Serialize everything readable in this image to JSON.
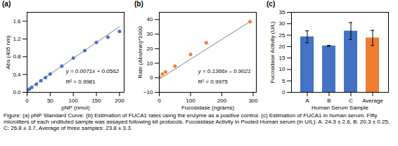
{
  "chart_data": [
    {
      "type": "scatter",
      "title": "(a)",
      "xlabel": "pNP (nmol)",
      "ylabel": "Abs (405 nm)",
      "series": [
        {
          "type": "scatter",
          "color": "#4472C4",
          "x": [
            0,
            5,
            10,
            20,
            30,
            40,
            50,
            75,
            100,
            125,
            150,
            175,
            200
          ],
          "values": [
            0.04,
            0.07,
            0.11,
            0.18,
            0.26,
            0.33,
            0.41,
            0.59,
            0.77,
            0.94,
            1.12,
            1.24,
            1.37
          ]
        },
        {
          "type": "line",
          "color": "#808080",
          "x": [
            0,
            200
          ],
          "values": [
            0.0562,
            1.4762
          ]
        }
      ],
      "annotations": [
        "y = 0.0071x + 0.0562",
        "R² = 0.9981"
      ],
      "xlim": [
        0,
        210
      ],
      "ylim": [
        0,
        1.8
      ],
      "xticks": [
        0,
        50,
        100,
        150,
        200
      ],
      "yticks": [
        {
          "value": 0.0,
          "label": "0.0"
        },
        0.4,
        0.8,
        1.2,
        1.6
      ]
    },
    {
      "type": "scatter",
      "title": "(b)",
      "xlabel": "Fucosidase (ngrams)",
      "ylabel": "Rate (Abs/min)*1000",
      "series": [
        {
          "type": "scatter",
          "color": "#ED7D31",
          "x": [
            0,
            10,
            20,
            50,
            100,
            150,
            290
          ],
          "values": [
            0.5,
            2.5,
            4.0,
            8.0,
            16.0,
            24.0,
            38.5
          ]
        },
        {
          "type": "line",
          "color": "#808080",
          "x": [
            0,
            290
          ],
          "values": [
            -0.9021,
            38.66
          ]
        }
      ],
      "annotations": [
        "y = 0.1366x – 0.9021",
        "R² = 0.9975"
      ],
      "xlim": [
        0,
        310
      ],
      "ylim": [
        -10,
        45
      ],
      "xticks": [
        0,
        100,
        200,
        300
      ],
      "yticks": [
        -10,
        0,
        10,
        20,
        30,
        40
      ]
    },
    {
      "type": "bar",
      "title": "(c)",
      "xlabel": "Human Serum Sample",
      "ylabel": "Fucosidase Activity (U/L)",
      "categories": [
        "A",
        "B",
        "C",
        "Average"
      ],
      "values": [
        24.3,
        20.3,
        26.8,
        23.8
      ],
      "errors": [
        2.6,
        0.25,
        3.7,
        3.3
      ],
      "colors": [
        "#4472C4",
        "#4472C4",
        "#4472C4",
        "#ED7D31"
      ],
      "ylim": [
        0,
        35
      ],
      "yticks": [
        0,
        5,
        10,
        15,
        20,
        25,
        30,
        35
      ]
    }
  ],
  "caption": "Figure: (a) pNP Standard Curve. (b) Estimation of FUCA1 rates using the enzyme as a positive control. (c) Estimation of FUCA1 in human serum. Fifty microliters of each undiluted sample was assayed following kit protocols. Fucosidase Activity in Pooled Human serum (in U/L): A: 24.3 ± 2.6, B: 20.3 ± 0.25, C: 26.8 ± 3.7, Average of three samples: 23.8 ± 3.3."
}
